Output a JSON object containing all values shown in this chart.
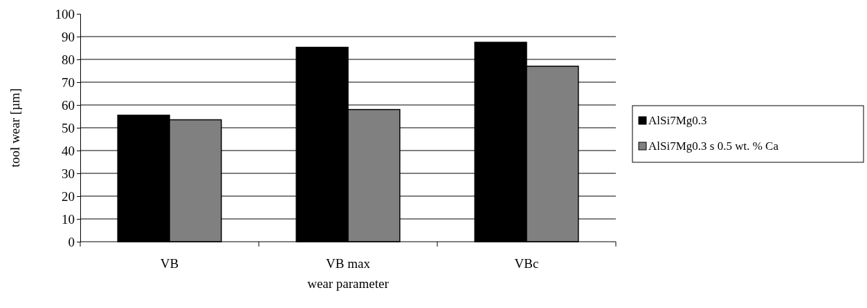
{
  "chart_data": {
    "type": "bar",
    "xlabel": "wear parameter",
    "ylabel": "tool wear [µm]",
    "categories": [
      "VB",
      "VB max",
      "VBc"
    ],
    "series": [
      {
        "name": "AlSi7Mg0.3",
        "color": "#000000",
        "values": [
          55.5,
          85.3,
          87.5
        ]
      },
      {
        "name": "AlSi7Mg0.3 s 0.5 wt. % Ca",
        "color": "#808080",
        "values": [
          53.5,
          58,
          77
        ]
      }
    ],
    "ylim": [
      0,
      100
    ],
    "yticks": [
      0,
      10,
      20,
      30,
      40,
      50,
      60,
      70,
      80,
      90,
      100
    ],
    "grid": "y",
    "legend": "right"
  }
}
